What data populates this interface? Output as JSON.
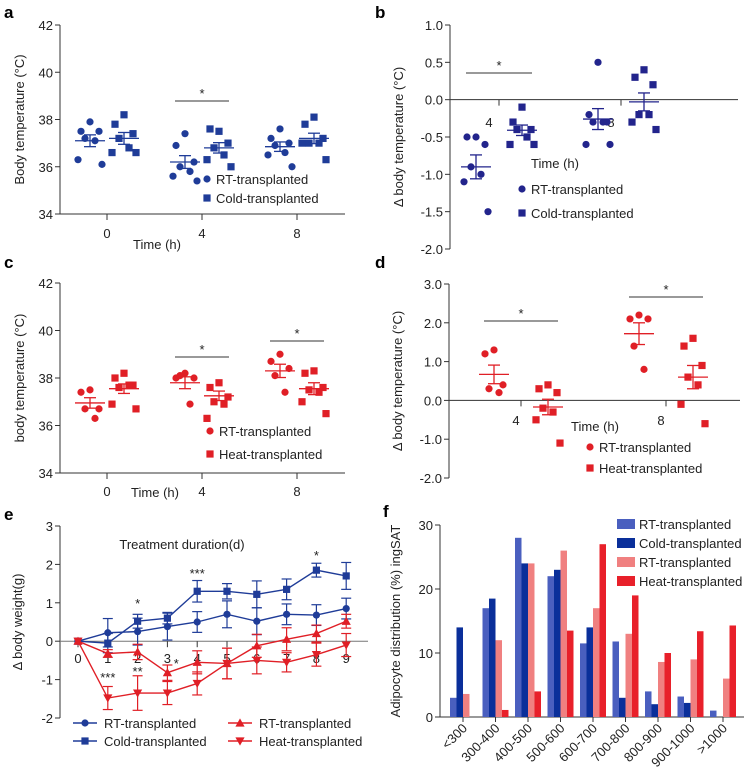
{
  "chart_data": [
    {
      "panel": "a",
      "type": "scatter",
      "ylabel": "Body temperature (°C)",
      "xlabel": "Time (h)",
      "ylim": [
        34,
        42
      ],
      "yticks": [
        "34",
        "36",
        "38",
        "40",
        "42"
      ],
      "xticks": [
        "0",
        "4",
        "8"
      ],
      "series": [
        {
          "name": "RT-transplanted",
          "marker": "circle",
          "color": "#1f3c98"
        },
        {
          "name": "Cold-transplanted",
          "marker": "square",
          "color": "#1f3c98"
        }
      ],
      "groups": [
        {
          "series": 0,
          "time": 0,
          "values": [
            37.9,
            37.5,
            37.5,
            37.2,
            37.1,
            36.3,
            36.1
          ],
          "mean": 37.1,
          "sem": 0.25
        },
        {
          "series": 1,
          "time": 0,
          "values": [
            38.2,
            37.8,
            37.4,
            37.2,
            36.8,
            36.6,
            36.6
          ],
          "mean": 37.2,
          "sem": 0.25
        },
        {
          "series": 0,
          "time": 4,
          "values": [
            37.4,
            36.9,
            36.2,
            36.0,
            35.8,
            35.6,
            35.4
          ],
          "mean": 36.2,
          "sem": 0.27
        },
        {
          "series": 1,
          "time": 4,
          "values": [
            37.5,
            37.6,
            37.0,
            36.8,
            36.5,
            36.3,
            36.0
          ],
          "mean": 36.8,
          "sem": 0.22
        },
        {
          "series": 0,
          "time": 8,
          "values": [
            37.6,
            37.2,
            37.0,
            36.9,
            36.6,
            36.5,
            36.0
          ],
          "mean": 36.85,
          "sem": 0.2
        },
        {
          "series": 1,
          "time": 8,
          "values": [
            38.1,
            37.8,
            37.2,
            37.0,
            37.0,
            37.0,
            36.3
          ],
          "mean": 37.2,
          "sem": 0.22
        }
      ],
      "significance": [
        {
          "time": 4,
          "text": "*"
        }
      ]
    },
    {
      "panel": "b",
      "type": "scatter",
      "ylabel": "Δ body temperature (°C)",
      "xlabel": "Time (h)",
      "ylim": [
        -2,
        1
      ],
      "yticks": [
        "-2.0",
        "-1.5",
        "-1.0",
        "-0.5",
        "0.0",
        "0.5",
        "1.0"
      ],
      "xticks": [
        "4",
        "8"
      ],
      "series": [
        {
          "name": "RT-transplanted",
          "marker": "circle",
          "color": "#22248c"
        },
        {
          "name": "Cold-transplanted",
          "marker": "square",
          "color": "#22248c"
        }
      ],
      "groups": [
        {
          "series": 0,
          "time": 4,
          "values": [
            -0.5,
            -0.5,
            -0.6,
            -0.9,
            -1.0,
            -1.1,
            -1.5
          ],
          "mean": -0.9,
          "sem": 0.16
        },
        {
          "series": 1,
          "time": 4,
          "values": [
            -0.1,
            -0.3,
            -0.4,
            -0.4,
            -0.5,
            -0.6,
            -0.6
          ],
          "mean": -0.41,
          "sem": 0.07
        },
        {
          "series": 0,
          "time": 8,
          "values": [
            0.5,
            -0.2,
            -0.3,
            -0.3,
            -0.3,
            -0.6,
            -0.6
          ],
          "mean": -0.26,
          "sem": 0.14
        },
        {
          "series": 1,
          "time": 8,
          "values": [
            0.4,
            0.3,
            0.2,
            -0.2,
            -0.2,
            -0.3,
            -0.4
          ],
          "mean": -0.03,
          "sem": 0.12
        }
      ],
      "significance": [
        {
          "time": 4,
          "text": "*"
        }
      ]
    },
    {
      "panel": "c",
      "type": "scatter",
      "ylabel": "body temperature (°C)",
      "xlabel": "Time (h)",
      "ylim": [
        34,
        42
      ],
      "yticks": [
        "34",
        "36",
        "38",
        "40",
        "42"
      ],
      "xticks": [
        "0",
        "4",
        "8"
      ],
      "series": [
        {
          "name": "RT-transplanted",
          "marker": "circle",
          "color": "#e01f26"
        },
        {
          "name": "Heat-transplanted",
          "marker": "square",
          "color": "#e01f26"
        }
      ],
      "groups": [
        {
          "series": 0,
          "time": 0,
          "values": [
            37.5,
            37.4,
            36.7,
            36.7,
            36.3
          ],
          "mean": 36.95,
          "sem": 0.22
        },
        {
          "series": 1,
          "time": 0,
          "values": [
            38.2,
            38.0,
            37.7,
            37.6,
            37.7,
            36.9,
            36.7
          ],
          "mean": 37.55,
          "sem": 0.2
        },
        {
          "series": 0,
          "time": 4,
          "values": [
            38.2,
            38.0,
            38.0,
            38.1,
            36.9
          ],
          "mean": 37.8,
          "sem": 0.25
        },
        {
          "series": 1,
          "time": 4,
          "values": [
            37.8,
            37.6,
            37.2,
            37.0,
            36.9,
            36.3
          ],
          "mean": 37.25,
          "sem": 0.2
        },
        {
          "series": 0,
          "time": 8,
          "values": [
            39.0,
            38.7,
            38.4,
            38.1,
            37.4
          ],
          "mean": 38.3,
          "sem": 0.28
        },
        {
          "series": 1,
          "time": 8,
          "values": [
            38.3,
            38.2,
            37.6,
            37.5,
            37.4,
            37.0,
            36.5
          ],
          "mean": 37.55,
          "sem": 0.25
        }
      ],
      "significance": [
        {
          "time": 4,
          "text": "*"
        },
        {
          "time": 8,
          "text": "*"
        }
      ]
    },
    {
      "panel": "d",
      "type": "scatter",
      "ylabel": "Δ body temperature (°C)",
      "xlabel": "Time (h)",
      "ylim": [
        -2,
        3
      ],
      "yticks": [
        "-2.0",
        "-1.0",
        "0.0",
        "1.0",
        "2.0",
        "3.0"
      ],
      "xticks": [
        "4",
        "8"
      ],
      "series": [
        {
          "name": "RT-transplanted",
          "marker": "circle",
          "color": "#e01f26"
        },
        {
          "name": "Heat-transplanted",
          "marker": "square",
          "color": "#e01f26"
        }
      ],
      "groups": [
        {
          "series": 0,
          "time": 4,
          "values": [
            1.3,
            1.2,
            0.4,
            0.3,
            0.2
          ],
          "mean": 0.67,
          "sem": 0.24
        },
        {
          "series": 1,
          "time": 4,
          "values": [
            0.4,
            0.3,
            0.2,
            -0.2,
            -0.3,
            -0.5,
            -1.1
          ],
          "mean": -0.17,
          "sem": 0.2
        },
        {
          "series": 0,
          "time": 8,
          "values": [
            2.2,
            2.1,
            2.1,
            1.4,
            0.8
          ],
          "mean": 1.72,
          "sem": 0.28
        },
        {
          "series": 1,
          "time": 8,
          "values": [
            1.6,
            1.4,
            0.9,
            0.6,
            0.4,
            -0.1,
            -0.6
          ],
          "mean": 0.6,
          "sem": 0.3
        }
      ],
      "significance": [
        {
          "time": 4,
          "text": "*"
        },
        {
          "time": 8,
          "text": "*"
        }
      ]
    },
    {
      "panel": "e",
      "type": "line",
      "title": "Treatment duration(d)",
      "ylabel": "Δ body weight(g)",
      "ylim": [
        -2,
        3
      ],
      "yticks": [
        "-2",
        "-1",
        "0",
        "1",
        "2",
        "3"
      ],
      "x": [
        0,
        1,
        2,
        3,
        4,
        5,
        6,
        7,
        8,
        9
      ],
      "xticks": [
        "0",
        "1",
        "2",
        "3",
        "4",
        "5",
        "6",
        "7",
        "8",
        "9"
      ],
      "series": [
        {
          "name": "RT-transplanted",
          "marker": "circle",
          "color": "#1f3c98",
          "values": [
            0,
            0.22,
            0.25,
            0.38,
            0.5,
            0.7,
            0.52,
            0.7,
            0.68,
            0.85
          ],
          "errors": [
            0,
            0.37,
            0.35,
            0.35,
            0.27,
            0.35,
            0.35,
            0.27,
            0.27,
            0.27
          ]
        },
        {
          "name": "Cold-transplanted",
          "marker": "square",
          "color": "#1f3c98",
          "values": [
            0,
            -0.05,
            0.52,
            0.6,
            1.3,
            1.3,
            1.22,
            1.35,
            1.85,
            1.7
          ],
          "errors": [
            0,
            0.25,
            0.18,
            0.15,
            0.28,
            0.2,
            0.35,
            0.27,
            0.18,
            0.35
          ]
        },
        {
          "name": "RT-transplanted",
          "marker": "triangle-up",
          "color": "#e01f26",
          "values": [
            0,
            -0.32,
            -0.28,
            -0.82,
            -0.55,
            -0.58,
            -0.12,
            0.05,
            0.2,
            0.52
          ],
          "errors": [
            0,
            0.1,
            0.2,
            0.2,
            0.3,
            0.4,
            0.3,
            0.3,
            0.22,
            0.18
          ]
        },
        {
          "name": "Heat-transplanted",
          "marker": "triangle-down",
          "color": "#e01f26",
          "values": [
            0,
            -1.48,
            -1.35,
            -1.35,
            -1.1,
            -0.58,
            -0.5,
            -0.55,
            -0.35,
            -0.1
          ],
          "errors": [
            0,
            0.3,
            0.45,
            0.3,
            0.3,
            0.4,
            0.35,
            0.25,
            0.3,
            0.3
          ]
        }
      ],
      "significance": [
        {
          "day": 1,
          "text": "***"
        },
        {
          "day": 2,
          "text": "*"
        },
        {
          "day": 2,
          "text": "**"
        },
        {
          "day": 3,
          "text": "*"
        },
        {
          "day": 4,
          "text": "***"
        },
        {
          "day": 8,
          "text": "*"
        }
      ]
    },
    {
      "panel": "f",
      "type": "bar",
      "ylabel": "Adipocyte distribution (%) ingSAT",
      "ylim": [
        0,
        30
      ],
      "yticks": [
        "0",
        "10",
        "20",
        "30"
      ],
      "categories": [
        "<300",
        "300-400",
        "400-500",
        "500-600",
        "600-700",
        "700-800",
        "800-900",
        "900-1000",
        ">1000"
      ],
      "series": [
        {
          "name": "RT-transplanted",
          "color": "#4a5fbf",
          "values": [
            3,
            17,
            28,
            22,
            11.5,
            11.8,
            4,
            3.2,
            1
          ]
        },
        {
          "name": "Cold-transplanted",
          "color": "#0a2f9a",
          "values": [
            14,
            18.5,
            24,
            23,
            14,
            3,
            2,
            2.2,
            0
          ]
        },
        {
          "name": "RT-transplanted",
          "color": "#f08080",
          "values": [
            3.6,
            12,
            24,
            26,
            17,
            13,
            8.6,
            9,
            6
          ]
        },
        {
          "name": "Heat-transplanted",
          "color": "#e8202a",
          "values": [
            0,
            1.1,
            4,
            13.5,
            27,
            19,
            10,
            13.4,
            14.3
          ]
        }
      ],
      "legend": "top-right"
    }
  ]
}
